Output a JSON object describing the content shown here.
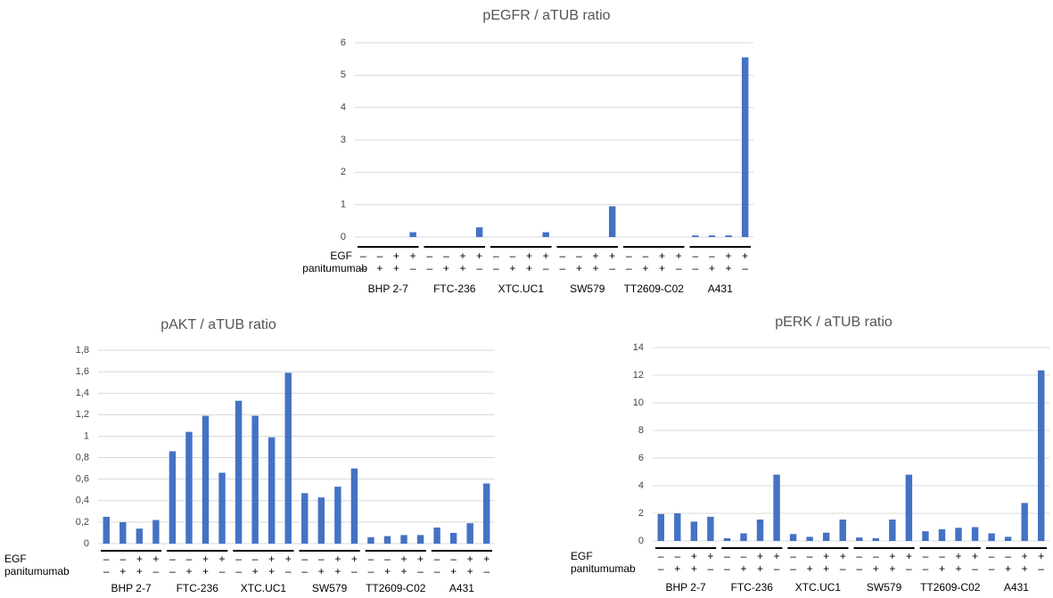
{
  "chart_data": [
    {
      "type": "bar",
      "title": "pEGFR / aTUB ratio",
      "color": "#4472c4",
      "grid": true,
      "ylim": [
        0,
        6
      ],
      "yticks": [
        0,
        1,
        2,
        3,
        4,
        5,
        6
      ],
      "groups": [
        "BHP 2-7",
        "FTC-236",
        "XTC.UC1",
        "SW579",
        "TT2609-C02",
        "A431"
      ],
      "values": [
        0,
        0,
        0,
        0.15,
        0,
        0,
        0,
        0.3,
        0,
        0,
        0,
        0.15,
        0,
        0,
        0,
        0.95,
        0,
        0,
        0,
        0,
        0.05,
        0.05,
        0.05,
        5.55
      ],
      "row_labels": [
        "EGF",
        "panitumumab"
      ],
      "egf": [
        "–",
        "–",
        "+",
        "+",
        "–",
        "–",
        "+",
        "+",
        "–",
        "–",
        "+",
        "+",
        "–",
        "–",
        "+",
        "+",
        "–",
        "–",
        "+",
        "+",
        "–",
        "–",
        "+",
        "+"
      ],
      "panitumumab": [
        "–",
        "+",
        "+",
        "–",
        "–",
        "+",
        "+",
        "–",
        "–",
        "+",
        "+",
        "–",
        "–",
        "+",
        "+",
        "–",
        "–",
        "+",
        "+",
        "–",
        "–",
        "+",
        "+",
        "–"
      ]
    },
    {
      "type": "bar",
      "title": "pAKT / aTUB ratio",
      "color": "#4472c4",
      "grid": true,
      "ylim": [
        0,
        1.8
      ],
      "yticks": [
        0,
        {
          "value": 0.2,
          "label": "0,2"
        },
        {
          "value": 0.4,
          "label": "0,4"
        },
        {
          "value": 0.6,
          "label": "0,6"
        },
        {
          "value": 0.8,
          "label": "0,8"
        },
        1,
        {
          "value": 1.2,
          "label": "1,2"
        },
        {
          "value": 1.4,
          "label": "1,4"
        },
        {
          "value": 1.6,
          "label": "1,6"
        },
        {
          "value": 1.8,
          "label": "1,8"
        }
      ],
      "groups": [
        "BHP 2-7",
        "FTC-236",
        "XTC.UC1",
        "SW579",
        "TT2609-C02",
        "A431"
      ],
      "values": [
        0.25,
        0.2,
        0.14,
        0.22,
        0.86,
        1.04,
        1.19,
        0.66,
        1.33,
        1.19,
        0.99,
        1.59,
        0.47,
        0.43,
        0.53,
        0.7,
        0.06,
        0.07,
        0.08,
        0.08,
        0.15,
        0.1,
        0.19,
        0.56
      ],
      "row_labels": [
        "EGF",
        "panitumumab"
      ],
      "egf": [
        "–",
        "–",
        "+",
        "+",
        "–",
        "–",
        "+",
        "+",
        "–",
        "–",
        "+",
        "+",
        "–",
        "–",
        "+",
        "+",
        "–",
        "–",
        "+",
        "+",
        "–",
        "–",
        "+",
        "+"
      ],
      "panitumumab": [
        "–",
        "+",
        "+",
        "–",
        "–",
        "+",
        "+",
        "–",
        "–",
        "+",
        "+",
        "–",
        "–",
        "+",
        "+",
        "–",
        "–",
        "+",
        "+",
        "–",
        "–",
        "+",
        "+",
        "–"
      ]
    },
    {
      "type": "bar",
      "title": "pERK / aTUB ratio",
      "color": "#4472c4",
      "grid": true,
      "ylim": [
        0,
        14
      ],
      "yticks": [
        0,
        2,
        4,
        6,
        8,
        10,
        12,
        14
      ],
      "groups": [
        "BHP 2-7",
        "FTC-236",
        "XTC.UC1",
        "SW579",
        "TT2609-C02",
        "A431"
      ],
      "values": [
        1.95,
        2.0,
        1.4,
        1.75,
        0.2,
        0.55,
        1.55,
        4.8,
        0.5,
        0.3,
        0.6,
        1.55,
        0.25,
        0.2,
        1.55,
        4.8,
        0.7,
        0.85,
        0.95,
        1.0,
        0.55,
        0.3,
        2.75,
        12.35
      ],
      "row_labels": [
        "EGF",
        "panitumumab"
      ],
      "egf": [
        "–",
        "–",
        "+",
        "+",
        "–",
        "–",
        "+",
        "+",
        "–",
        "–",
        "+",
        "+",
        "–",
        "–",
        "+",
        "+",
        "–",
        "–",
        "+",
        "+",
        "–",
        "–",
        "+",
        "+"
      ],
      "panitumumab": [
        "–",
        "+",
        "+",
        "–",
        "–",
        "+",
        "+",
        "–",
        "–",
        "+",
        "+",
        "–",
        "–",
        "+",
        "+",
        "–",
        "–",
        "+",
        "+",
        "–",
        "–",
        "+",
        "+",
        "–"
      ]
    }
  ]
}
